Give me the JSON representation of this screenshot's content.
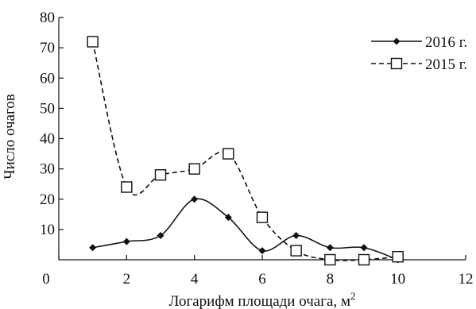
{
  "chart_data": {
    "type": "line",
    "xlabel": "Логарифм площади очага, м",
    "xlabel_sup": "2",
    "ylabel": "Число очагов",
    "xlim": [
      0,
      12
    ],
    "ylim": [
      0,
      80
    ],
    "x_ticks": [
      0,
      2,
      4,
      6,
      8,
      10,
      12
    ],
    "y_ticks": [
      10,
      20,
      30,
      40,
      50,
      60,
      70,
      80
    ],
    "grid": false,
    "legend_position": "top-right",
    "smooth": true,
    "series": [
      {
        "name": "2016 г.",
        "marker": "filled-diamond",
        "line_style": "solid",
        "color": "#111111",
        "x": [
          1,
          2,
          3,
          4,
          5,
          6,
          7,
          8,
          9,
          10
        ],
        "y": [
          4,
          6,
          8,
          20,
          14,
          3,
          8,
          4,
          4,
          0
        ]
      },
      {
        "name": "2015 г.",
        "marker": "open-square",
        "line_style": "dashed",
        "color": "#111111",
        "x": [
          1,
          2,
          3,
          4,
          5,
          6,
          7,
          8,
          9,
          10
        ],
        "y": [
          72,
          24,
          28,
          30,
          35,
          14,
          3,
          0,
          0,
          1
        ]
      }
    ]
  }
}
